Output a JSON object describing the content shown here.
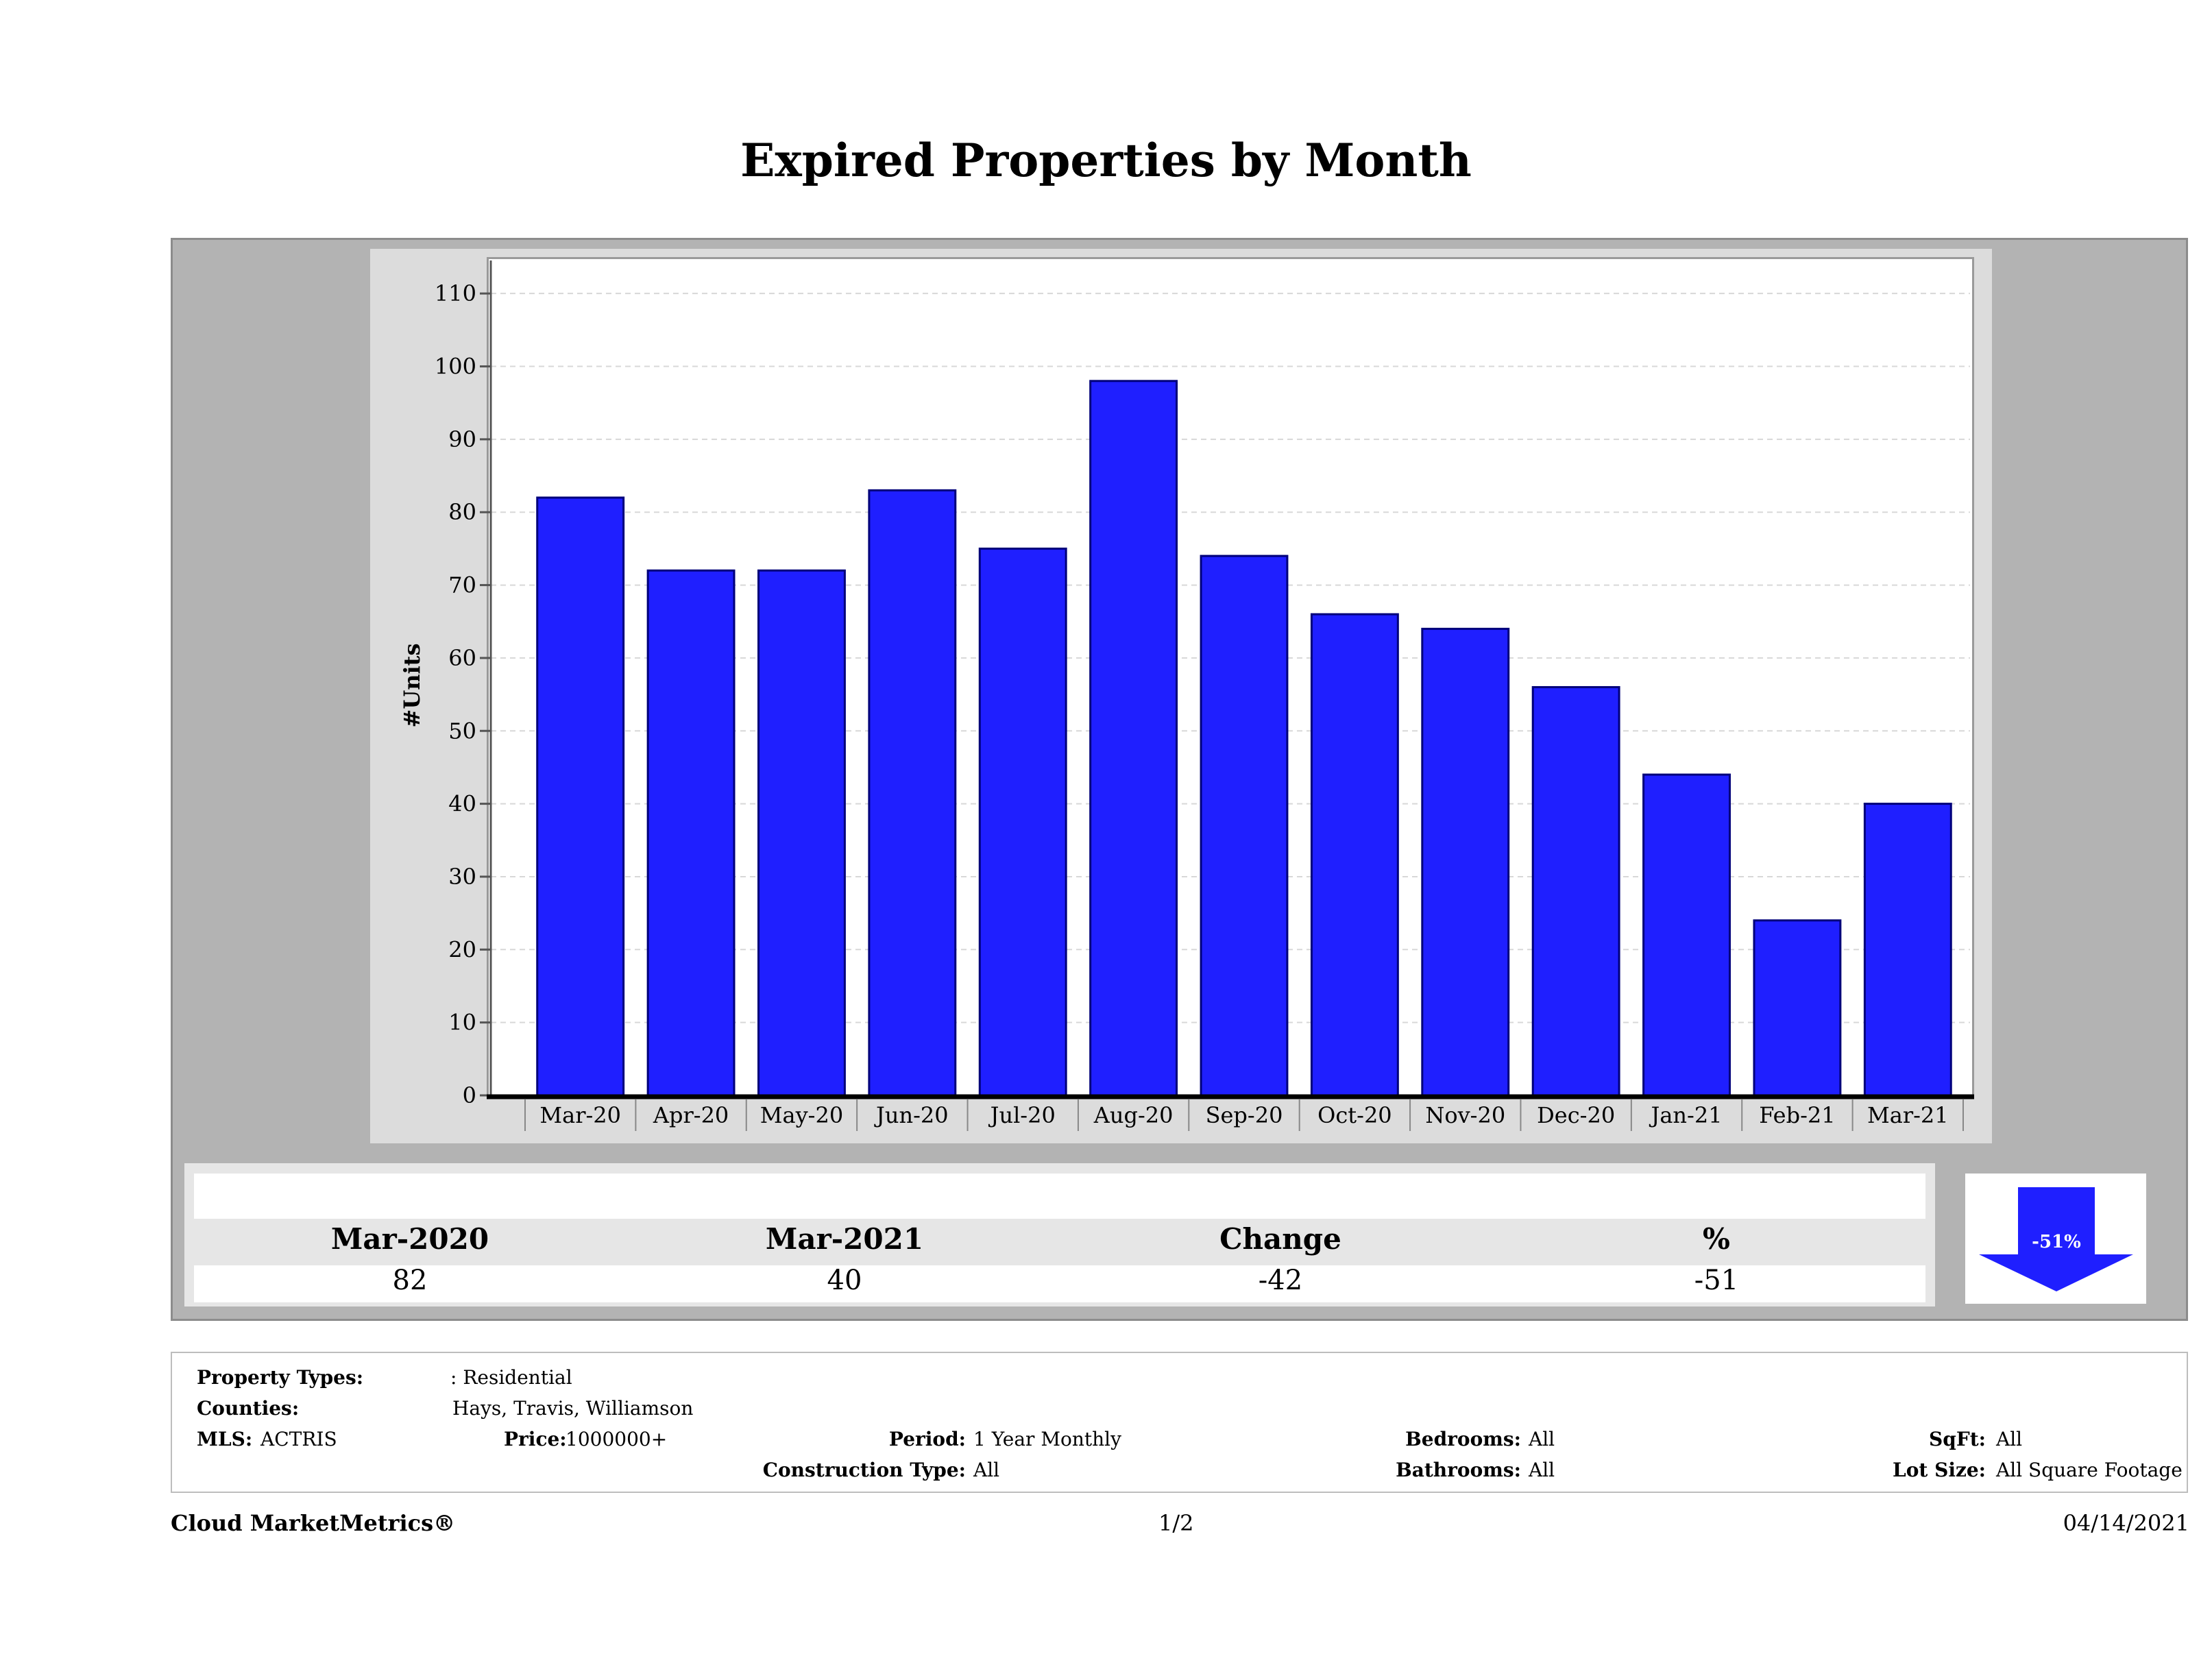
{
  "title": "Expired Properties by Month",
  "chart_data": {
    "type": "bar",
    "title": "Expired Properties by Month",
    "xlabel": "",
    "ylabel": "#Units",
    "ylim": [
      0,
      115
    ],
    "yticks": [
      0,
      10,
      20,
      30,
      40,
      50,
      60,
      70,
      80,
      90,
      100,
      110
    ],
    "categories": [
      "Mar-20",
      "Apr-20",
      "May-20",
      "Jun-20",
      "Jul-20",
      "Aug-20",
      "Sep-20",
      "Oct-20",
      "Nov-20",
      "Dec-20",
      "Jan-21",
      "Feb-21",
      "Mar-21"
    ],
    "values": [
      82,
      72,
      72,
      83,
      75,
      98,
      74,
      66,
      64,
      56,
      44,
      24,
      40
    ],
    "bar_color": "#1f1fff",
    "grid": true
  },
  "stats": {
    "headers": [
      "Mar-2020",
      "Mar-2021",
      "Change",
      "%"
    ],
    "values": [
      "82",
      "40",
      "-42",
      "-51"
    ],
    "badge": "-51%",
    "arrow_color": "#1f1fff"
  },
  "info": {
    "property_types_label": "Property Types:",
    "property_types_value": ": Residential",
    "counties_label": "Counties:",
    "counties_value": "Hays, Travis, Williamson",
    "mls_label": "MLS:",
    "mls_value": "ACTRIS",
    "price_label": "Price:",
    "price_value": "1000000+",
    "period_label": "Period:",
    "period_value": "1 Year Monthly",
    "construction_label": "Construction Type:",
    "construction_value": "All",
    "bedrooms_label": "Bedrooms:",
    "bedrooms_value": "All",
    "bathrooms_label": "Bathrooms:",
    "bathrooms_value": "All",
    "sqft_label": "SqFt:",
    "sqft_value": "All",
    "lotsize_label": "Lot Size:",
    "lotsize_value": "All Square Footage"
  },
  "footer": {
    "brand": "Cloud MarketMetrics®",
    "page": "1/2",
    "date": "04/14/2021"
  }
}
